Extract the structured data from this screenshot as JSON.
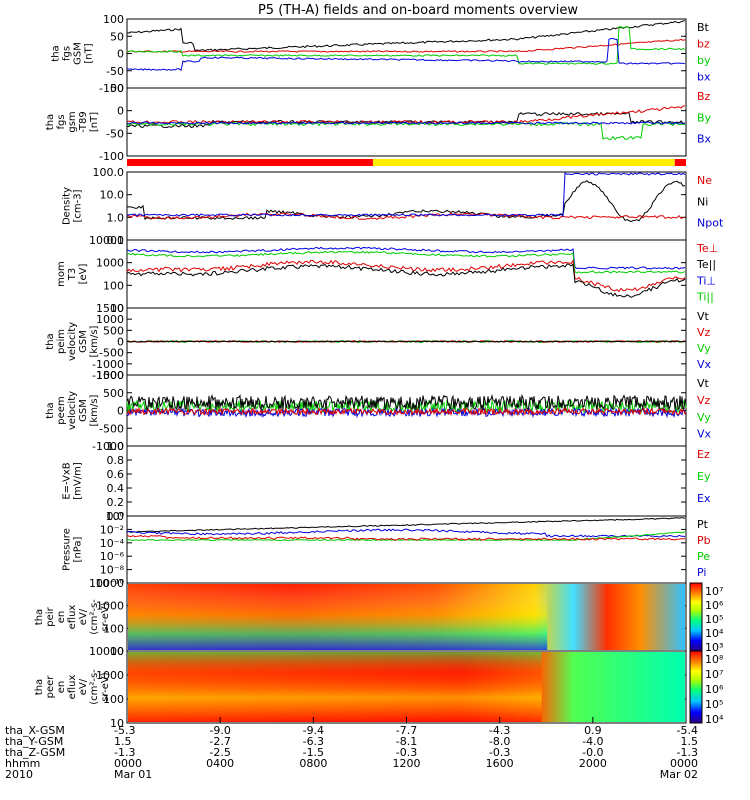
{
  "title": "P5 (TH-A) fields and on-board moments overview",
  "colors": {
    "black": "#000000",
    "red": "#dd0000",
    "green": "#00cc00",
    "blue": "#0000dd",
    "yellow": "#ffee00",
    "bar_red": "#ff0000"
  },
  "chart_data": [
    {
      "id": "fgs",
      "type": "line",
      "ylabel": [
        "tha",
        "fgs",
        "GSM",
        "[nT]"
      ],
      "ylim": [
        -100,
        100
      ],
      "ticks": [
        "100",
        "50",
        "0",
        "-50",
        "-100"
      ],
      "legend": [
        {
          "name": "Bt",
          "color": "#000000"
        },
        {
          "name": "bz",
          "color": "#dd0000"
        },
        {
          "name": "by",
          "color": "#00cc00"
        },
        {
          "name": "bx",
          "color": "#0000dd"
        }
      ]
    },
    {
      "id": "fgs_dgsm",
      "type": "line",
      "ylabel": [
        "tha",
        "fgs",
        "gsm",
        "-T89",
        "[nT]"
      ],
      "ylim": [
        -120,
        70
      ],
      "ticks": [
        "50",
        "0",
        "-50",
        "-100"
      ],
      "legend": [
        {
          "name": "Bz",
          "color": "#dd0000"
        },
        {
          "name": "By",
          "color": "#00cc00"
        },
        {
          "name": "Bx",
          "color": "#0000dd"
        }
      ]
    },
    {
      "id": "density",
      "type": "line",
      "scale": "log",
      "ylabel": [
        "Density",
        "[cm-3]"
      ],
      "ylim": [
        0.1,
        100
      ],
      "ticks": [
        "100.0",
        "10.0",
        "1.0",
        "0.1"
      ],
      "legend": [
        {
          "name": "Ne",
          "color": "#dd0000"
        },
        {
          "name": "Ni",
          "color": "#000000"
        },
        {
          "name": "Npot",
          "color": "#0000dd"
        }
      ]
    },
    {
      "id": "temp",
      "type": "line",
      "scale": "log",
      "ylabel": [
        "mom",
        "T3",
        "[eV]"
      ],
      "ylim": [
        10,
        10000
      ],
      "ticks": [
        "10000",
        "1000",
        "100",
        "10"
      ],
      "legend": [
        {
          "name": "Te⊥",
          "color": "#dd0000"
        },
        {
          "name": "Te||",
          "color": "#000000"
        },
        {
          "name": "Ti⊥",
          "color": "#0000dd"
        },
        {
          "name": "Ti||",
          "color": "#00cc00"
        }
      ]
    },
    {
      "id": "ion_vel",
      "type": "line",
      "ylabel": [
        "tha",
        "peim",
        "velocity",
        "GSM",
        "[km/s]"
      ],
      "ylim": [
        -1500,
        1500
      ],
      "ticks": [
        "1500",
        "1000",
        "500",
        "0",
        "-500",
        "-1000",
        "-1500"
      ],
      "legend": [
        {
          "name": "Vt",
          "color": "#000000"
        },
        {
          "name": "Vz",
          "color": "#dd0000"
        },
        {
          "name": "Vy",
          "color": "#00cc00"
        },
        {
          "name": "Vx",
          "color": "#0000dd"
        }
      ]
    },
    {
      "id": "elec_vel",
      "type": "line",
      "ylabel": [
        "tha",
        "peem",
        "velocity",
        "GSM",
        "[km/s]"
      ],
      "ylim": [
        -1000,
        1000
      ],
      "ticks": [
        "1000",
        "500",
        "0",
        "-500",
        "-1000"
      ],
      "legend": [
        {
          "name": "Vt",
          "color": "#000000"
        },
        {
          "name": "Vz",
          "color": "#dd0000"
        },
        {
          "name": "Vy",
          "color": "#00cc00"
        },
        {
          "name": "Vx",
          "color": "#0000dd"
        }
      ]
    },
    {
      "id": "efield",
      "type": "line",
      "ylabel": [
        "E=-VxB",
        "[mV/m]"
      ],
      "ylim": [
        0,
        1
      ],
      "ticks": [
        "1.0",
        "0.8",
        "0.6",
        "0.4",
        "0.2",
        "0.0"
      ],
      "legend": [
        {
          "name": "Ez",
          "color": "#dd0000"
        },
        {
          "name": "Ey",
          "color": "#00cc00"
        },
        {
          "name": "Ex",
          "color": "#0000dd"
        }
      ]
    },
    {
      "id": "pressure",
      "type": "line",
      "scale": "log",
      "ylabel": [
        "Pressure",
        "[nPa]"
      ],
      "ylim": [
        1e-10,
        1
      ],
      "ticks": [
        "10⁰",
        "10⁻²",
        "10⁻⁴",
        "10⁻⁶",
        "10⁻⁸",
        "10⁻¹⁰"
      ],
      "legend": [
        {
          "name": "Pt",
          "color": "#000000"
        },
        {
          "name": "Pb",
          "color": "#dd0000"
        },
        {
          "name": "Pe",
          "color": "#00cc00"
        },
        {
          "name": "Pi",
          "color": "#0000dd"
        }
      ]
    },
    {
      "id": "ion_spec",
      "type": "heatmap",
      "ylabel": [
        "tha",
        "peir",
        "en",
        "eflux",
        "eV/",
        "(cm²-s-",
        "sr-eV)"
      ],
      "ticks": [
        "10000",
        "1000",
        "100",
        "10"
      ],
      "colorbar": [
        "10⁷",
        "10⁶",
        "10⁵",
        "10⁴",
        "10³"
      ]
    },
    {
      "id": "elec_spec",
      "type": "heatmap",
      "ylabel": [
        "tha",
        "peer",
        "en",
        "eflux",
        "eV/",
        "(cm²-s-",
        "sr-eV)"
      ],
      "ticks": [
        "10000",
        "1000",
        "100",
        "10"
      ],
      "colorbar": [
        "10⁸",
        "10⁷",
        "10⁶",
        "10⁵",
        "10⁴"
      ]
    }
  ],
  "xaxis": {
    "row_labels": [
      "tha_X-GSM",
      "tha_Y-GSM",
      "tha_Z-GSM",
      "hhmm",
      "2010"
    ],
    "columns": [
      {
        "x": "-5.3",
        "y": "1.5",
        "z": "-1.3",
        "t": "0000",
        "d": "Mar 01"
      },
      {
        "x": "-9.0",
        "y": "-2.7",
        "z": "-2.5",
        "t": "0400",
        "d": ""
      },
      {
        "x": "-9.4",
        "y": "-6.3",
        "z": "-1.5",
        "t": "0800",
        "d": ""
      },
      {
        "x": "-7.7",
        "y": "-8.1",
        "z": "-0.3",
        "t": "1200",
        "d": ""
      },
      {
        "x": "-4.3",
        "y": "-8.0",
        "z": "-0.3",
        "t": "1600",
        "d": ""
      },
      {
        "x": "0.9",
        "y": "-4.0",
        "z": "-0.0",
        "t": "2000",
        "d": ""
      },
      {
        "x": "-5.4",
        "y": "1.5",
        "z": "-1.3",
        "t": "0000",
        "d": "Mar 02"
      }
    ]
  }
}
